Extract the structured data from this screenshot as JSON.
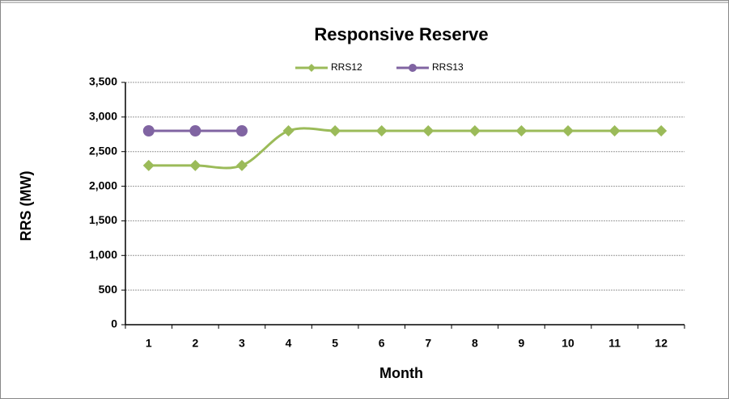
{
  "chart_data": {
    "type": "line",
    "title": "Responsive Reserve",
    "x_label": "Month",
    "y_label": "RRS (MW)",
    "categories": [
      "1",
      "2",
      "3",
      "4",
      "5",
      "6",
      "7",
      "8",
      "9",
      "10",
      "11",
      "12"
    ],
    "series": [
      {
        "name": "RRS12",
        "color": "#9bbb59",
        "marker": "diamond",
        "smooth": true,
        "values": [
          2300,
          2300,
          2300,
          2800,
          2800,
          2800,
          2800,
          2800,
          2800,
          2800,
          2800,
          2800
        ]
      },
      {
        "name": "RRS13",
        "color": "#8064a2",
        "marker": "circle",
        "smooth": true,
        "values": [
          2800,
          2800,
          2800,
          null,
          null,
          null,
          null,
          null,
          null,
          null,
          null,
          null
        ]
      }
    ],
    "ylim": [
      0,
      3500
    ],
    "yticks": [
      0,
      500,
      {
        "value": 1000,
        "label": "1,000"
      },
      {
        "value": 1500,
        "label": "1,500"
      },
      {
        "value": 2000,
        "label": "2,000"
      },
      {
        "value": 2500,
        "label": "2,500"
      },
      {
        "value": 3000,
        "label": "3,000"
      },
      {
        "value": 3500,
        "label": "3,500"
      }
    ],
    "grid": true,
    "legend": "top"
  }
}
